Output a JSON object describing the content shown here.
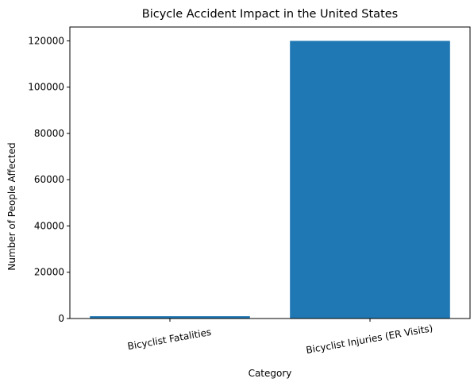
{
  "chart_data": {
    "type": "bar",
    "title": "Bicycle Accident Impact in the United States",
    "xlabel": "Category",
    "ylabel": "Number of People Affected",
    "categories": [
      "Bicyclist Fatalities",
      "Bicyclist Injuries (ER Visits)"
    ],
    "values": [
      1000,
      120000
    ],
    "ylim": [
      0,
      126000
    ],
    "yticks": [
      0,
      20000,
      40000,
      60000,
      80000,
      100000,
      120000
    ],
    "ytick_labels": [
      "0",
      "20000",
      "40000",
      "60000",
      "80000",
      "100000",
      "120000"
    ],
    "bar_color": "#1f77b4",
    "grid": false,
    "legend": false
  }
}
